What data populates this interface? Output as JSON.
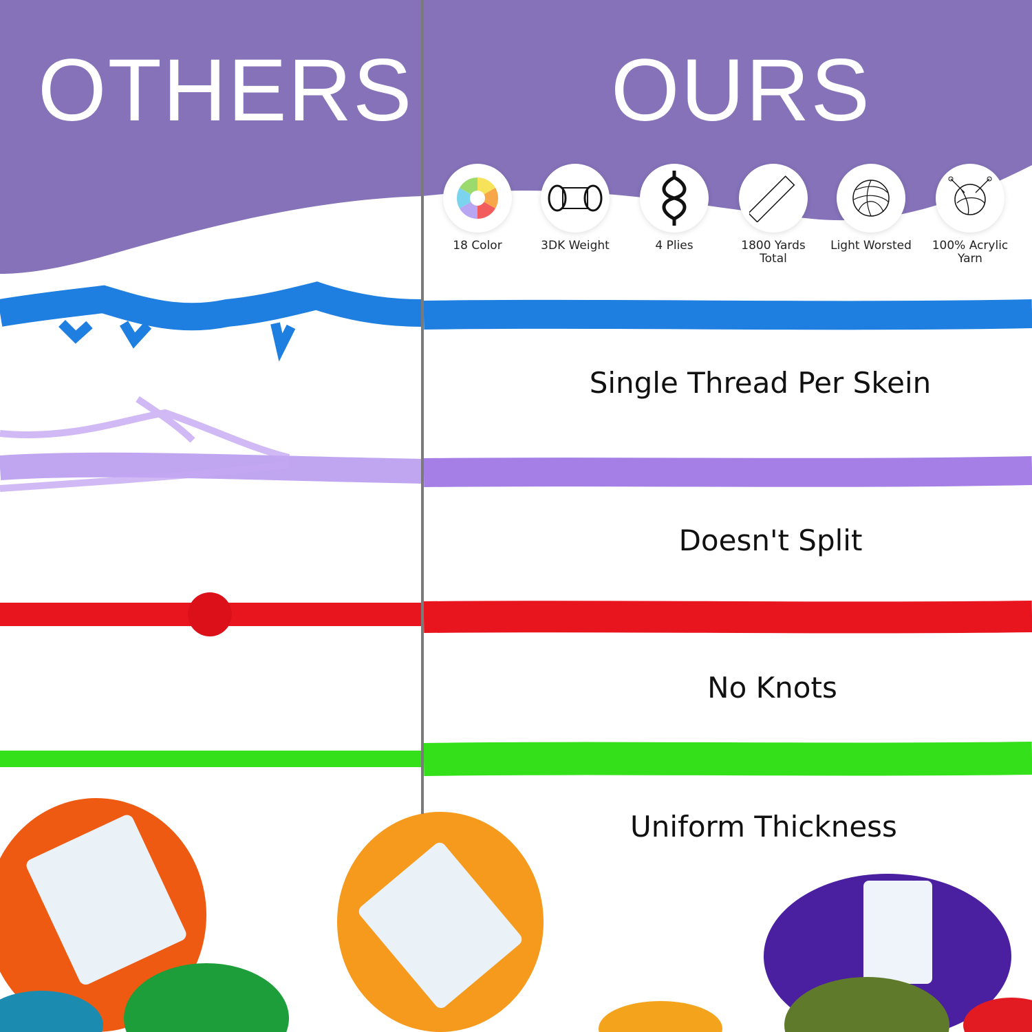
{
  "colors": {
    "banner": "#8572B9",
    "blue": "#1E7FE0",
    "purple": "#A57FE6",
    "red": "#E8151E",
    "green": "#33E01A"
  },
  "headings": {
    "others": "OTHERS",
    "ours": "OURS"
  },
  "features": [
    {
      "icon": "color-wheel-icon",
      "label": "18 Color"
    },
    {
      "icon": "yarn-skein-icon",
      "label": "3DK Weight"
    },
    {
      "icon": "twisted-plies-icon",
      "label": "4 Plies"
    },
    {
      "icon": "ruler-icon",
      "label": "1800 Yards Total"
    },
    {
      "icon": "yarn-ball-icon",
      "label": "Light Worsted"
    },
    {
      "icon": "yarn-ball-needles-icon",
      "label": "100% Acrylic Yarn"
    }
  ],
  "claims": [
    "Single Thread Per Skein",
    "Doesn't Split",
    "No Knots",
    "Uniform Thickness"
  ],
  "label_text": "ACRYLIC YARN"
}
